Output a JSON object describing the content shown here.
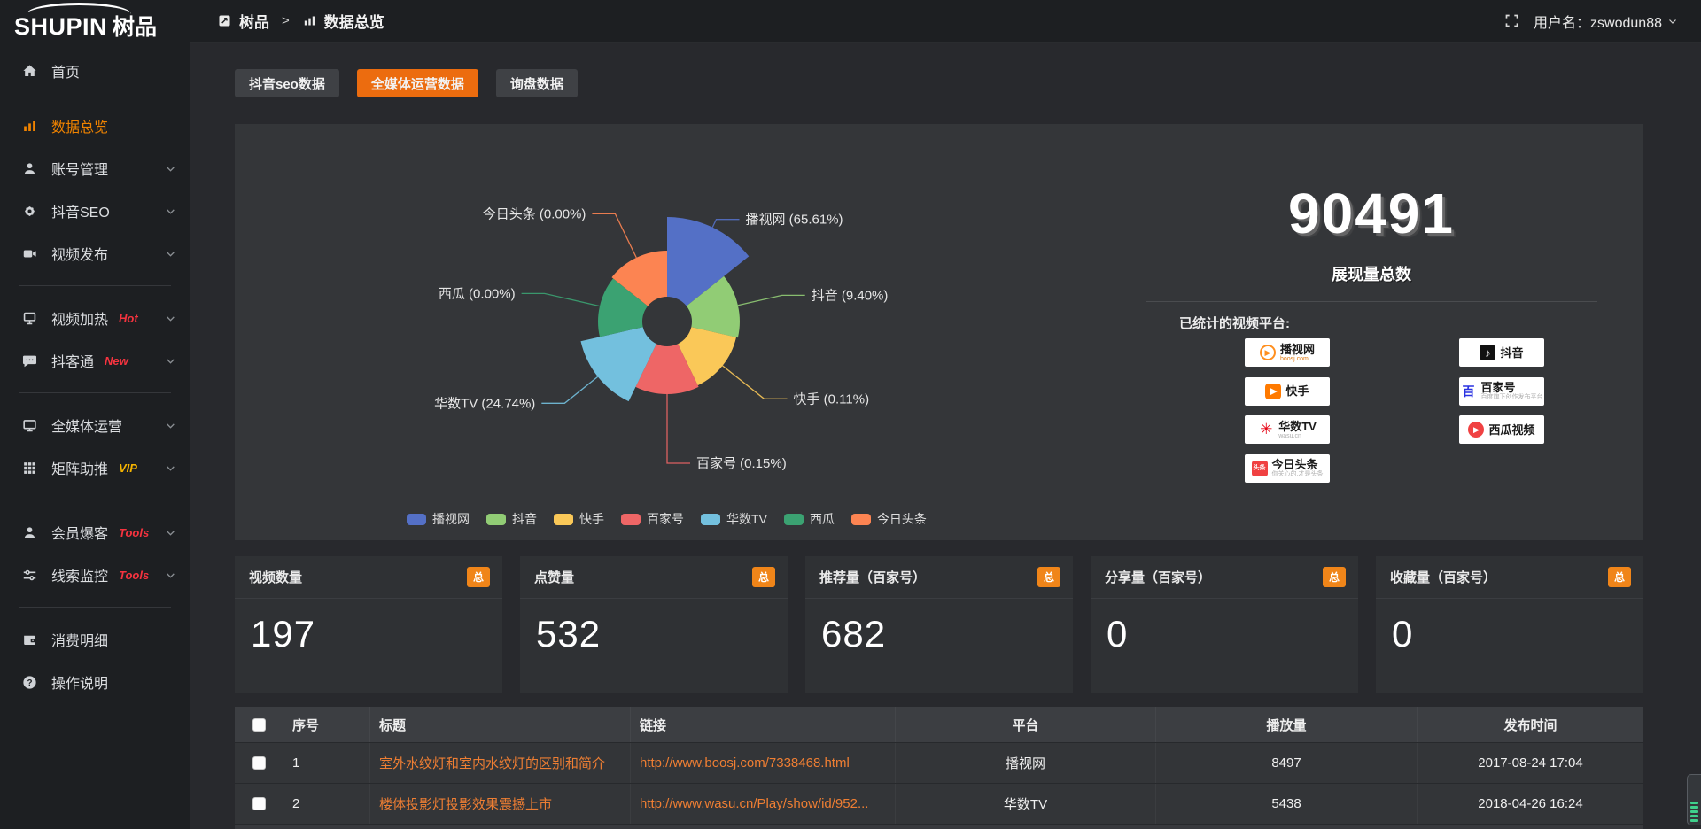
{
  "brand": {
    "name": "SHUPIN",
    "name_cn": "树品"
  },
  "topbar": {
    "breadcrumb": [
      {
        "icon": "doc-icon",
        "label": "树品"
      },
      {
        "icon": "bar-chart-icon",
        "label": "数据总览"
      }
    ],
    "separator": ">",
    "username": "用户名：zswodun88"
  },
  "sidebar": {
    "items": [
      {
        "key": "home",
        "label": "首页",
        "icon": "i-home",
        "active": false,
        "gap_after": true
      },
      {
        "key": "data-overview",
        "label": "数据总览",
        "icon": "i-chart",
        "active": true
      },
      {
        "key": "account-manage",
        "label": "账号管理",
        "icon": "i-user",
        "chevron": true
      },
      {
        "key": "douyin-seo",
        "label": "抖音SEO",
        "icon": "i-gear",
        "chevron": true
      },
      {
        "key": "video-publish",
        "label": "视频发布",
        "icon": "i-video",
        "chevron": true,
        "divider_after": true
      },
      {
        "key": "video-heat",
        "label": "视频加热",
        "icon": "i-screen",
        "chevron": true,
        "badge": "Hot",
        "badge_color": "#f5333f"
      },
      {
        "key": "douketong",
        "label": "抖客通",
        "icon": "i-chat",
        "chevron": true,
        "badge": "New",
        "badge_color": "#f5333f",
        "divider_after": true
      },
      {
        "key": "media-ops",
        "label": "全媒体运营",
        "icon": "i-monitor",
        "chevron": true
      },
      {
        "key": "matrix-boost",
        "label": "矩阵助推",
        "icon": "i-grid",
        "chevron": true,
        "badge": "VIP",
        "badge_color": "#f7b500",
        "divider_after": true
      },
      {
        "key": "member-booster",
        "label": "会员爆客",
        "icon": "i-user",
        "chevron": true,
        "badge": "Tools",
        "badge_color": "#f5333f"
      },
      {
        "key": "clue-monitor",
        "label": "线索监控",
        "icon": "i-sliders",
        "chevron": true,
        "badge": "Tools",
        "badge_color": "#f5333f",
        "divider_after": true
      },
      {
        "key": "consume-detail",
        "label": "消费明细",
        "icon": "i-wallet"
      },
      {
        "key": "operation-help",
        "label": "操作说明",
        "icon": "i-help"
      }
    ]
  },
  "tabs": [
    {
      "key": "douyin-seo-data",
      "label": "抖音seo数据",
      "active": false
    },
    {
      "key": "media-ops-data",
      "label": "全媒体运营数据",
      "active": true
    },
    {
      "key": "inquiry-data",
      "label": "询盘数据",
      "active": false
    }
  ],
  "chart_data": {
    "type": "pie",
    "variant": "nightingale_rose_area",
    "title": "",
    "legend_position": "bottom",
    "categories": [
      "播视网",
      "抖音",
      "快手",
      "百家号",
      "华数TV",
      "西瓜",
      "今日头条"
    ],
    "percentages": [
      65.61,
      9.4,
      0.11,
      0.15,
      24.74,
      0.0,
      0.0
    ],
    "percent_labels": [
      "65.61%",
      "9.40%",
      "0.11%",
      "0.15%",
      "24.74%",
      "0.00%",
      "0.00%"
    ],
    "colors": [
      "#5470c6",
      "#91cc75",
      "#fac858",
      "#ee6666",
      "#73c0de",
      "#3ba272",
      "#fc8452"
    ],
    "display_outer_radii": [
      118,
      82,
      80,
      82,
      100,
      78,
      80
    ],
    "inner_radius": 28,
    "label_elbow_radii": [
      128,
      133,
      140,
      160,
      148,
      142,
      135
    ],
    "start_angle_deg": 0,
    "equal_angles": true
  },
  "summary": {
    "total_value": "90491",
    "total_label": "展现量总数",
    "platforms_label": "已统计的视频平台:",
    "platforms_left": [
      {
        "name": "播视网",
        "sub": "boosj.com",
        "sub_style": "orange",
        "icon": "boosj-logo"
      },
      {
        "name": "快手",
        "icon": "kuaishou-logo"
      },
      {
        "name": "华数TV",
        "sub": "wasu.cn",
        "sub_style": "gray",
        "icon": "wasu-logo"
      },
      {
        "name": "今日头条",
        "sub": "你关心的,才是头条",
        "sub_style": "gray",
        "icon": "toutiao-logo"
      }
    ],
    "platforms_right": [
      {
        "name": "抖音",
        "icon": "douyin-logo"
      },
      {
        "name": "百家号",
        "sub": "百度旗下创作发布平台",
        "sub_style": "gray",
        "icon": "baijiahao-logo"
      },
      {
        "name": "西瓜视频",
        "icon": "xigua-logo"
      }
    ]
  },
  "stat_cards": [
    {
      "key": "video-count",
      "title": "视频数量",
      "badge": "总",
      "value": "197"
    },
    {
      "key": "like-count",
      "title": "点赞量",
      "badge": "总",
      "value": "532"
    },
    {
      "key": "recommend-count",
      "title": "推荐量（百家号）",
      "badge": "总",
      "value": "682"
    },
    {
      "key": "share-count",
      "title": "分享量（百家号）",
      "badge": "总",
      "value": "0"
    },
    {
      "key": "favorite-count",
      "title": "收藏量（百家号）",
      "badge": "总",
      "value": "0"
    }
  ],
  "table": {
    "headers": [
      "序号",
      "标题",
      "链接",
      "平台",
      "播放量",
      "发布时间"
    ],
    "rows": [
      {
        "index": "1",
        "title": "室外水纹灯和室内水纹灯的区别和简介",
        "link": "http://www.boosj.com/7338468.html",
        "platform": "播视网",
        "views": "8497",
        "time": "2017-08-24 17:04"
      },
      {
        "index": "2",
        "title": "楼体投影灯投影效果震撼上市",
        "link": "http://www.wasu.cn/Play/show/id/952...",
        "platform": "华数TV",
        "views": "5438",
        "time": "2018-04-26 16:24"
      }
    ]
  },
  "colors": {
    "accent_orange": "#ec6c0f",
    "badge_orange": "#f08519",
    "link_orange": "#ee7e33",
    "hot_red": "#f5333f",
    "vip_gold": "#f7b500",
    "widget_green": "#3fd08c"
  }
}
